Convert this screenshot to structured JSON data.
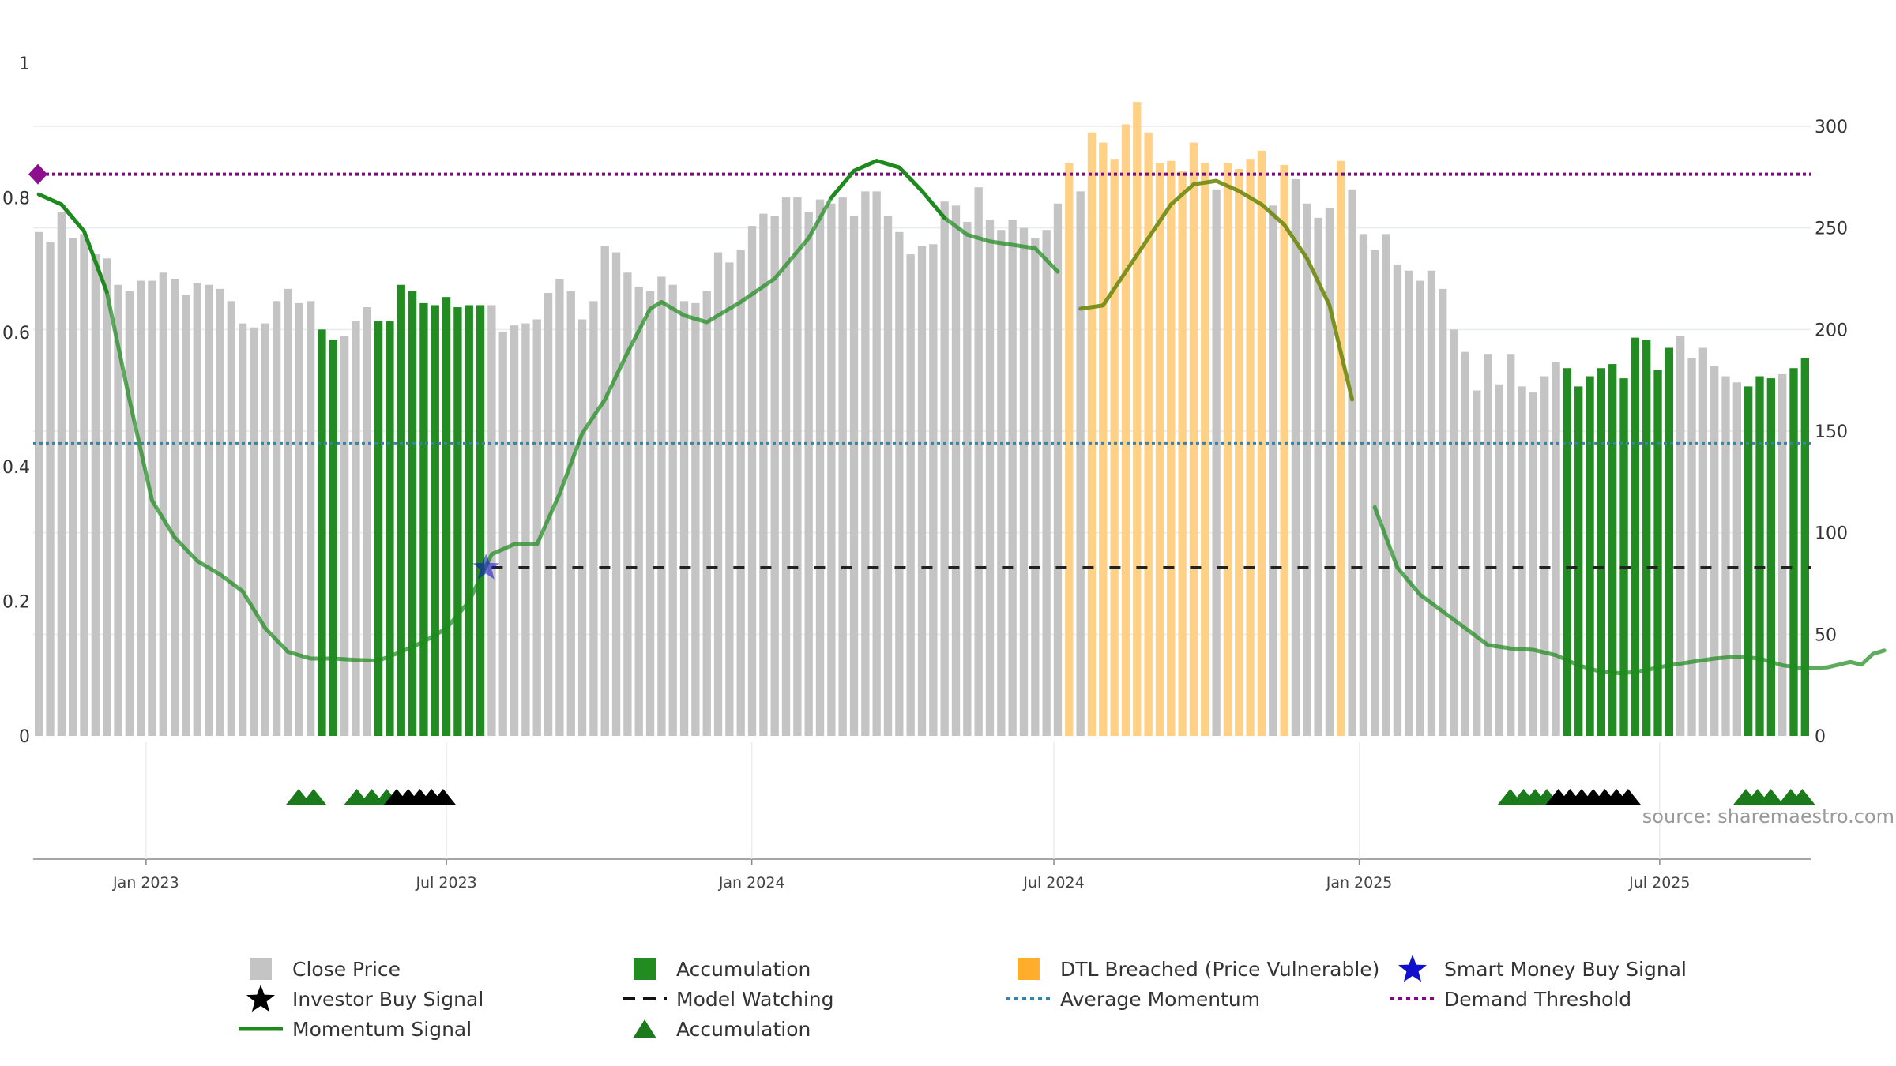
{
  "chart_data": {
    "type": "bar",
    "title": "",
    "xlabel": "",
    "ylabel": "",
    "x_ticks": [
      "Jan 2023",
      "Jul 2023",
      "Jan 2024",
      "Jul 2024",
      "Jan 2025",
      "Jul 2025"
    ],
    "x_range": [
      "2022-10-25",
      "2025-09-30"
    ],
    "y_left": {
      "ticks": [
        "0",
        "0.2",
        "0.4",
        "0.6",
        "0.8",
        "1"
      ],
      "range": [
        0,
        1
      ]
    },
    "y_right": {
      "ticks": [
        "0",
        "50",
        "100",
        "150",
        "200",
        "250",
        "300"
      ],
      "range": [
        0,
        330
      ]
    },
    "source_text": "source: sharemaestro.com",
    "bars": [
      {
        "v": 248,
        "s": "gray"
      },
      {
        "v": 243,
        "s": "gray"
      },
      {
        "v": 258,
        "s": "gray"
      },
      {
        "v": 245,
        "s": "gray"
      },
      {
        "v": 247,
        "s": "gray"
      },
      {
        "v": 237,
        "s": "gray"
      },
      {
        "v": 235,
        "s": "gray"
      },
      {
        "v": 222,
        "s": "gray"
      },
      {
        "v": 219,
        "s": "gray"
      },
      {
        "v": 224,
        "s": "gray"
      },
      {
        "v": 224,
        "s": "gray"
      },
      {
        "v": 228,
        "s": "gray"
      },
      {
        "v": 225,
        "s": "gray"
      },
      {
        "v": 217,
        "s": "gray"
      },
      {
        "v": 223,
        "s": "gray"
      },
      {
        "v": 222,
        "s": "gray"
      },
      {
        "v": 220,
        "s": "gray"
      },
      {
        "v": 214,
        "s": "gray"
      },
      {
        "v": 203,
        "s": "gray"
      },
      {
        "v": 201,
        "s": "gray"
      },
      {
        "v": 203,
        "s": "gray"
      },
      {
        "v": 214,
        "s": "gray"
      },
      {
        "v": 220,
        "s": "gray"
      },
      {
        "v": 213,
        "s": "gray"
      },
      {
        "v": 214,
        "s": "gray"
      },
      {
        "v": 200,
        "s": "green"
      },
      {
        "v": 195,
        "s": "green"
      },
      {
        "v": 197,
        "s": "gray"
      },
      {
        "v": 204,
        "s": "gray"
      },
      {
        "v": 211,
        "s": "gray"
      },
      {
        "v": 204,
        "s": "green"
      },
      {
        "v": 204,
        "s": "green"
      },
      {
        "v": 222,
        "s": "green"
      },
      {
        "v": 219,
        "s": "green"
      },
      {
        "v": 213,
        "s": "green"
      },
      {
        "v": 212,
        "s": "green"
      },
      {
        "v": 216,
        "s": "green"
      },
      {
        "v": 211,
        "s": "green"
      },
      {
        "v": 212,
        "s": "green"
      },
      {
        "v": 212,
        "s": "green"
      },
      {
        "v": 212,
        "s": "gray"
      },
      {
        "v": 199,
        "s": "gray"
      },
      {
        "v": 202,
        "s": "gray"
      },
      {
        "v": 203,
        "s": "gray"
      },
      {
        "v": 205,
        "s": "gray"
      },
      {
        "v": 218,
        "s": "gray"
      },
      {
        "v": 225,
        "s": "gray"
      },
      {
        "v": 219,
        "s": "gray"
      },
      {
        "v": 205,
        "s": "gray"
      },
      {
        "v": 214,
        "s": "gray"
      },
      {
        "v": 241,
        "s": "gray"
      },
      {
        "v": 238,
        "s": "gray"
      },
      {
        "v": 228,
        "s": "gray"
      },
      {
        "v": 221,
        "s": "gray"
      },
      {
        "v": 219,
        "s": "gray"
      },
      {
        "v": 226,
        "s": "gray"
      },
      {
        "v": 222,
        "s": "gray"
      },
      {
        "v": 214,
        "s": "gray"
      },
      {
        "v": 213,
        "s": "gray"
      },
      {
        "v": 219,
        "s": "gray"
      },
      {
        "v": 238,
        "s": "gray"
      },
      {
        "v": 233,
        "s": "gray"
      },
      {
        "v": 239,
        "s": "gray"
      },
      {
        "v": 251,
        "s": "gray"
      },
      {
        "v": 257,
        "s": "gray"
      },
      {
        "v": 256,
        "s": "gray"
      },
      {
        "v": 265,
        "s": "gray"
      },
      {
        "v": 265,
        "s": "gray"
      },
      {
        "v": 258,
        "s": "gray"
      },
      {
        "v": 264,
        "s": "gray"
      },
      {
        "v": 262,
        "s": "gray"
      },
      {
        "v": 265,
        "s": "gray"
      },
      {
        "v": 256,
        "s": "gray"
      },
      {
        "v": 268,
        "s": "gray"
      },
      {
        "v": 268,
        "s": "gray"
      },
      {
        "v": 256,
        "s": "gray"
      },
      {
        "v": 248,
        "s": "gray"
      },
      {
        "v": 237,
        "s": "gray"
      },
      {
        "v": 241,
        "s": "gray"
      },
      {
        "v": 242,
        "s": "gray"
      },
      {
        "v": 263,
        "s": "gray"
      },
      {
        "v": 261,
        "s": "gray"
      },
      {
        "v": 253,
        "s": "gray"
      },
      {
        "v": 270,
        "s": "gray"
      },
      {
        "v": 254,
        "s": "gray"
      },
      {
        "v": 249,
        "s": "gray"
      },
      {
        "v": 254,
        "s": "gray"
      },
      {
        "v": 250,
        "s": "gray"
      },
      {
        "v": 245,
        "s": "gray"
      },
      {
        "v": 249,
        "s": "gray"
      },
      {
        "v": 262,
        "s": "gray"
      },
      {
        "v": 282,
        "s": "orange"
      },
      {
        "v": 268,
        "s": "gray"
      },
      {
        "v": 297,
        "s": "orange"
      },
      {
        "v": 292,
        "s": "orange"
      },
      {
        "v": 284,
        "s": "orange"
      },
      {
        "v": 301,
        "s": "orange"
      },
      {
        "v": 312,
        "s": "orange"
      },
      {
        "v": 297,
        "s": "orange"
      },
      {
        "v": 282,
        "s": "orange"
      },
      {
        "v": 283,
        "s": "orange"
      },
      {
        "v": 278,
        "s": "orange"
      },
      {
        "v": 292,
        "s": "orange"
      },
      {
        "v": 282,
        "s": "orange"
      },
      {
        "v": 269,
        "s": "gray"
      },
      {
        "v": 282,
        "s": "orange"
      },
      {
        "v": 279,
        "s": "orange"
      },
      {
        "v": 284,
        "s": "orange"
      },
      {
        "v": 288,
        "s": "orange"
      },
      {
        "v": 261,
        "s": "gray"
      },
      {
        "v": 281,
        "s": "orange"
      },
      {
        "v": 274,
        "s": "gray"
      },
      {
        "v": 262,
        "s": "gray"
      },
      {
        "v": 255,
        "s": "gray"
      },
      {
        "v": 260,
        "s": "gray"
      },
      {
        "v": 283,
        "s": "orange"
      },
      {
        "v": 269,
        "s": "gray"
      },
      {
        "v": 247,
        "s": "gray"
      },
      {
        "v": 239,
        "s": "gray"
      },
      {
        "v": 247,
        "s": "gray"
      },
      {
        "v": 232,
        "s": "gray"
      },
      {
        "v": 229,
        "s": "gray"
      },
      {
        "v": 224,
        "s": "gray"
      },
      {
        "v": 229,
        "s": "gray"
      },
      {
        "v": 220,
        "s": "gray"
      },
      {
        "v": 200,
        "s": "gray"
      },
      {
        "v": 189,
        "s": "gray"
      },
      {
        "v": 170,
        "s": "gray"
      },
      {
        "v": 188,
        "s": "gray"
      },
      {
        "v": 173,
        "s": "gray"
      },
      {
        "v": 188,
        "s": "gray"
      },
      {
        "v": 172,
        "s": "gray"
      },
      {
        "v": 169,
        "s": "gray"
      },
      {
        "v": 177,
        "s": "gray"
      },
      {
        "v": 184,
        "s": "gray"
      },
      {
        "v": 181,
        "s": "green"
      },
      {
        "v": 172,
        "s": "green"
      },
      {
        "v": 177,
        "s": "green"
      },
      {
        "v": 181,
        "s": "green"
      },
      {
        "v": 183,
        "s": "green"
      },
      {
        "v": 176,
        "s": "green"
      },
      {
        "v": 196,
        "s": "green"
      },
      {
        "v": 195,
        "s": "green"
      },
      {
        "v": 180,
        "s": "green"
      },
      {
        "v": 191,
        "s": "green"
      },
      {
        "v": 197,
        "s": "gray"
      },
      {
        "v": 186,
        "s": "gray"
      },
      {
        "v": 191,
        "s": "gray"
      },
      {
        "v": 182,
        "s": "gray"
      },
      {
        "v": 177,
        "s": "gray"
      },
      {
        "v": 174,
        "s": "gray"
      },
      {
        "v": 172,
        "s": "green"
      },
      {
        "v": 177,
        "s": "green"
      },
      {
        "v": 176,
        "s": "green"
      },
      {
        "v": 178,
        "s": "gray"
      },
      {
        "v": 181,
        "s": "green"
      },
      {
        "v": 186,
        "s": "green"
      }
    ],
    "momentum": [
      [
        0,
        0.805
      ],
      [
        2,
        0.79
      ],
      [
        4,
        0.75
      ],
      [
        6,
        0.66
      ],
      [
        8,
        0.5
      ],
      [
        10,
        0.35
      ],
      [
        12,
        0.295
      ],
      [
        14,
        0.26
      ],
      [
        16,
        0.24
      ],
      [
        18,
        0.215
      ],
      [
        20,
        0.16
      ],
      [
        22,
        0.125
      ],
      [
        24,
        0.115
      ],
      [
        26,
        0.115
      ],
      [
        28,
        0.113
      ],
      [
        30,
        0.112
      ],
      [
        32,
        0.125
      ],
      [
        34,
        0.14
      ],
      [
        36,
        0.16
      ],
      [
        38,
        0.2
      ],
      [
        40,
        0.27
      ],
      [
        42,
        0.285
      ],
      [
        44,
        0.285
      ],
      [
        46,
        0.36
      ],
      [
        48,
        0.45
      ],
      [
        50,
        0.5
      ],
      [
        52,
        0.57
      ],
      [
        54,
        0.635
      ],
      [
        55,
        0.645
      ],
      [
        57,
        0.625
      ],
      [
        59,
        0.615
      ],
      [
        62,
        0.645
      ],
      [
        65,
        0.68
      ],
      [
        68,
        0.74
      ],
      [
        70,
        0.8
      ],
      [
        72,
        0.84
      ],
      [
        74,
        0.855
      ],
      [
        76,
        0.845
      ],
      [
        78,
        0.81
      ],
      [
        80,
        0.77
      ],
      [
        82,
        0.745
      ],
      [
        84,
        0.735
      ],
      [
        86,
        0.73
      ],
      [
        88,
        0.725
      ],
      [
        90,
        0.69
      ],
      [
        92,
        0.635
      ],
      [
        94,
        0.64
      ],
      [
        96,
        0.69
      ],
      [
        98,
        0.74
      ],
      [
        100,
        0.79
      ],
      [
        102,
        0.82
      ],
      [
        104,
        0.825
      ],
      [
        106,
        0.81
      ],
      [
        108,
        0.79
      ],
      [
        110,
        0.76
      ],
      [
        112,
        0.71
      ],
      [
        114,
        0.64
      ],
      [
        116,
        0.5
      ],
      [
        118,
        0.34
      ],
      [
        120,
        0.25
      ],
      [
        122,
        0.21
      ],
      [
        124,
        0.185
      ],
      [
        126,
        0.16
      ],
      [
        128,
        0.135
      ],
      [
        130,
        0.13
      ],
      [
        132,
        0.128
      ],
      [
        134,
        0.12
      ],
      [
        136,
        0.105
      ],
      [
        138,
        0.095
      ],
      [
        140,
        0.093
      ],
      [
        142,
        0.098
      ],
      [
        144,
        0.105
      ],
      [
        146,
        0.11
      ],
      [
        148,
        0.115
      ],
      [
        150,
        0.118
      ],
      [
        152,
        0.115
      ],
      [
        154,
        0.105
      ],
      [
        156,
        0.1
      ],
      [
        158,
        0.102
      ],
      [
        160,
        0.11
      ],
      [
        161,
        0.106
      ],
      [
        162,
        0.122
      ],
      [
        163,
        0.127
      ]
    ],
    "accumulation_segments": [
      [
        25,
        26
      ],
      [
        30,
        39
      ],
      [
        135,
        144
      ],
      [
        151,
        153
      ],
      [
        155,
        156
      ]
    ],
    "dtl_breached_segment": [
      91,
      117
    ],
    "demand_threshold": 0.835,
    "average_momentum": 0.435,
    "model_watching": {
      "level": 0.25,
      "from_index": 40
    },
    "smart_money_buy_signal": {
      "index": 39.5,
      "value": 0.25
    },
    "signal_markers": [
      {
        "d": "2023-04-03",
        "k": "acc"
      },
      {
        "d": "2023-04-12",
        "k": "acc"
      },
      {
        "d": "2023-05-08",
        "k": "acc"
      },
      {
        "d": "2023-05-17",
        "k": "acc"
      },
      {
        "d": "2023-05-26",
        "k": "acc"
      },
      {
        "d": "2023-06-01",
        "k": "inv"
      },
      {
        "d": "2023-06-08",
        "k": "inv"
      },
      {
        "d": "2023-06-15",
        "k": "inv"
      },
      {
        "d": "2023-06-22",
        "k": "inv"
      },
      {
        "d": "2023-06-29",
        "k": "inv"
      },
      {
        "d": "2025-04-02",
        "k": "acc"
      },
      {
        "d": "2025-04-10",
        "k": "acc"
      },
      {
        "d": "2025-04-17",
        "k": "acc"
      },
      {
        "d": "2025-04-24",
        "k": "acc"
      },
      {
        "d": "2025-05-01",
        "k": "inv"
      },
      {
        "d": "2025-05-08",
        "k": "inv"
      },
      {
        "d": "2025-05-15",
        "k": "inv"
      },
      {
        "d": "2025-05-22",
        "k": "inv"
      },
      {
        "d": "2025-05-29",
        "k": "inv"
      },
      {
        "d": "2025-06-05",
        "k": "inv"
      },
      {
        "d": "2025-06-12",
        "k": "inv"
      },
      {
        "d": "2025-08-22",
        "k": "acc"
      },
      {
        "d": "2025-08-29",
        "k": "acc"
      },
      {
        "d": "2025-09-06",
        "k": "acc"
      },
      {
        "d": "2025-09-18",
        "k": "acc"
      },
      {
        "d": "2025-09-25",
        "k": "acc"
      }
    ],
    "colors": {
      "close_price": "#c4c4c4",
      "accumulation": "#228b22",
      "dtl": "#ffd187",
      "momentum": "#1e8a1e",
      "momentum_dtl": "#6f8a10",
      "threshold": "#7a0b7f",
      "average": "#3a82a8",
      "watching": "#222222",
      "smart_star": "#1010cc"
    },
    "legend": [
      {
        "label": "Close Price",
        "icon": "gray-square"
      },
      {
        "label": "Accumulation",
        "icon": "green-square"
      },
      {
        "label": "DTL Breached (Price Vulnerable)",
        "icon": "orange-square"
      },
      {
        "label": "Smart Money Buy Signal",
        "icon": "blue-star"
      },
      {
        "label": "Investor Buy Signal",
        "icon": "black-star"
      },
      {
        "label": "Model Watching",
        "icon": "black-dashed-line"
      },
      {
        "label": "Average Momentum",
        "icon": "blue-dotted-line"
      },
      {
        "label": "Demand Threshold",
        "icon": "purple-dotted-line"
      },
      {
        "label": "Momentum Signal",
        "icon": "green-line"
      },
      {
        "label": "Accumulation",
        "icon": "green-triangle"
      }
    ]
  }
}
